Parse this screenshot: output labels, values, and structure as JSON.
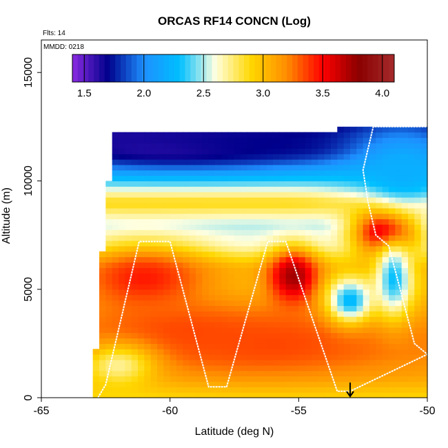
{
  "chart_data": {
    "type": "heatmap",
    "title": "ORCAS RF14 CONCN (Log)",
    "xlabel": "Latitude (deg N)",
    "ylabel": "Altitude (m)",
    "xlim": [
      -65,
      -50
    ],
    "ylim": [
      0,
      16500
    ],
    "xticks": [
      -65,
      -60,
      -55,
      -50
    ],
    "yticks": [
      0,
      5000,
      10000,
      15000
    ],
    "annotations": {
      "flights": "Flts: 14",
      "date": "MMDD: 0218"
    },
    "colorbar": {
      "range": [
        1.4,
        4.1
      ],
      "ticks": [
        1.5,
        2.0,
        2.5,
        3.0,
        3.5,
        4.0
      ],
      "position": "top",
      "colors": [
        "#8a2be2",
        "#00008b",
        "#1e90ff",
        "#00bfff",
        "#ffffe0",
        "#ffd700",
        "#ff8c00",
        "#ff0000",
        "#8b0000",
        "#a52a2a"
      ]
    },
    "arrow_marker_lat": -53,
    "field": {
      "x_bounds": [
        -63,
        -50
      ],
      "top_altitude": [
        [
          -63,
          0
        ],
        [
          -62.5,
          9000
        ],
        [
          -62.3,
          10500
        ],
        [
          -62.2,
          12200
        ],
        [
          -58,
          12200
        ],
        [
          -55,
          12200
        ],
        [
          -52.2,
          12300
        ],
        [
          -52,
          12500
        ],
        [
          -50,
          12500
        ]
      ],
      "blobs": [
        {
          "lat": -61,
          "alt": 5500,
          "value": 3.45,
          "sx": 1.8,
          "sy": 1100
        },
        {
          "lat": -59.5,
          "alt": 3000,
          "value": 3.35,
          "sx": 2.5,
          "sy": 900
        },
        {
          "lat": -55.2,
          "alt": 5600,
          "value": 3.75,
          "sx": 0.7,
          "sy": 900
        },
        {
          "lat": -51.6,
          "alt": 7800,
          "value": 3.95,
          "sx": 0.9,
          "sy": 900
        },
        {
          "lat": -56,
          "alt": 2500,
          "value": 3.35,
          "sx": 3,
          "sy": 1000
        },
        {
          "lat": -53,
          "alt": 4500,
          "value": 2.25,
          "sx": 0.6,
          "sy": 700
        },
        {
          "lat": -51.3,
          "alt": 5500,
          "value": 2.3,
          "sx": 0.5,
          "sy": 1200
        },
        {
          "lat": -60,
          "alt": 11500,
          "value": 1.6,
          "sx": 4,
          "sy": 700
        },
        {
          "lat": -55,
          "alt": 11800,
          "value": 1.7,
          "sx": 4,
          "sy": 600
        },
        {
          "lat": -51,
          "alt": 10500,
          "value": 2.2,
          "sx": 1.5,
          "sy": 1500
        },
        {
          "lat": -62,
          "alt": 1500,
          "value": 2.7,
          "sx": 1,
          "sy": 700
        }
      ],
      "base_by_altitude": [
        [
          0,
          2.9
        ],
        [
          1000,
          3.1
        ],
        [
          2000,
          3.2
        ],
        [
          3000,
          3.2
        ],
        [
          4000,
          3.1
        ],
        [
          5000,
          3.0
        ],
        [
          6000,
          3.0
        ],
        [
          7000,
          2.6
        ],
        [
          8000,
          2.5
        ],
        [
          9000,
          2.9
        ],
        [
          10000,
          2.4
        ],
        [
          11000,
          2.1
        ],
        [
          12000,
          1.7
        ],
        [
          12500,
          1.6
        ]
      ]
    },
    "flight_track": [
      [
        -62.8,
        0
      ],
      [
        -62.5,
        600
      ],
      [
        -61.2,
        7200
      ],
      [
        -60,
        7200
      ],
      [
        -58.5,
        500
      ],
      [
        -57.8,
        500
      ],
      [
        -56.2,
        7200
      ],
      [
        -55.5,
        7200
      ],
      [
        -53.5,
        300
      ],
      [
        -53,
        300
      ],
      [
        -50,
        2000
      ],
      [
        -50.5,
        2500
      ],
      [
        -51.5,
        7000
      ],
      [
        -52,
        7500
      ],
      [
        -52.3,
        9000
      ],
      [
        -52.5,
        10500
      ],
      [
        -52.1,
        12500
      ],
      [
        -50,
        12500
      ]
    ]
  }
}
